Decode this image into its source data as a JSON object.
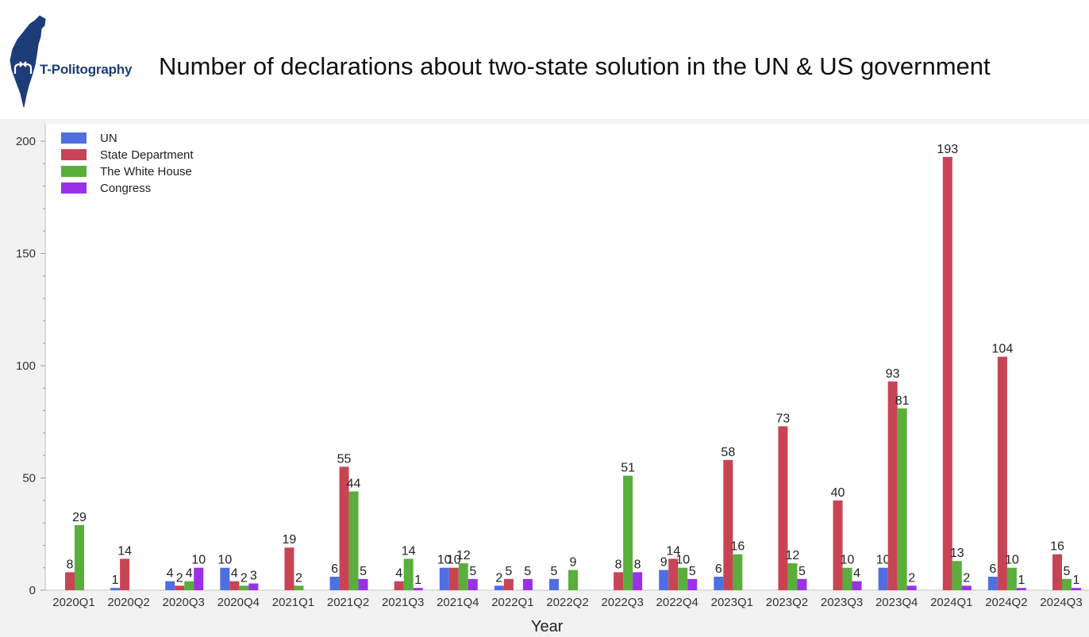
{
  "brand": {
    "name": "T-Politography"
  },
  "colors": {
    "map": "#1d3d78",
    "brand_text": "#1d3d78"
  },
  "icons": {
    "logo": "israel-map-icon",
    "logo_symbol": "crossing-arrows-icon"
  },
  "chart_data": {
    "type": "bar",
    "title": "Number of declarations about two-state solution in the UN & US government",
    "xlabel": "Year",
    "ylabel": "",
    "ylim": [
      0,
      200
    ],
    "yticks": [
      0,
      50,
      100,
      150,
      200
    ],
    "grid": false,
    "legend_position": "top-left",
    "categories": [
      "2020Q1",
      "2020Q2",
      "2020Q3",
      "2020Q4",
      "2021Q1",
      "2021Q2",
      "2021Q3",
      "2021Q4",
      "2022Q1",
      "2022Q2",
      "2022Q3",
      "2022Q4",
      "2023Q1",
      "2023Q2",
      "2023Q3",
      "2023Q4",
      "2024Q1",
      "2024Q2",
      "2024Q3"
    ],
    "series": [
      {
        "name": "UN",
        "color": "#4f6fe0",
        "values": [
          null,
          1,
          4,
          10,
          null,
          6,
          null,
          10,
          2,
          5,
          null,
          9,
          6,
          null,
          null,
          10,
          null,
          6,
          null
        ]
      },
      {
        "name": "State Department",
        "color": "#c84455",
        "values": [
          8,
          14,
          2,
          4,
          19,
          55,
          4,
          10,
          5,
          null,
          8,
          14,
          58,
          73,
          40,
          93,
          193,
          104,
          16
        ]
      },
      {
        "name": "The White House",
        "color": "#5aae3c",
        "values": [
          29,
          null,
          4,
          2,
          2,
          44,
          14,
          12,
          null,
          9,
          51,
          10,
          16,
          12,
          10,
          81,
          13,
          10,
          5
        ]
      },
      {
        "name": "Congress",
        "color": "#9b30e8",
        "values": [
          null,
          null,
          10,
          3,
          null,
          5,
          1,
          5,
          5,
          null,
          8,
          5,
          null,
          5,
          4,
          2,
          2,
          1,
          1
        ]
      }
    ]
  }
}
